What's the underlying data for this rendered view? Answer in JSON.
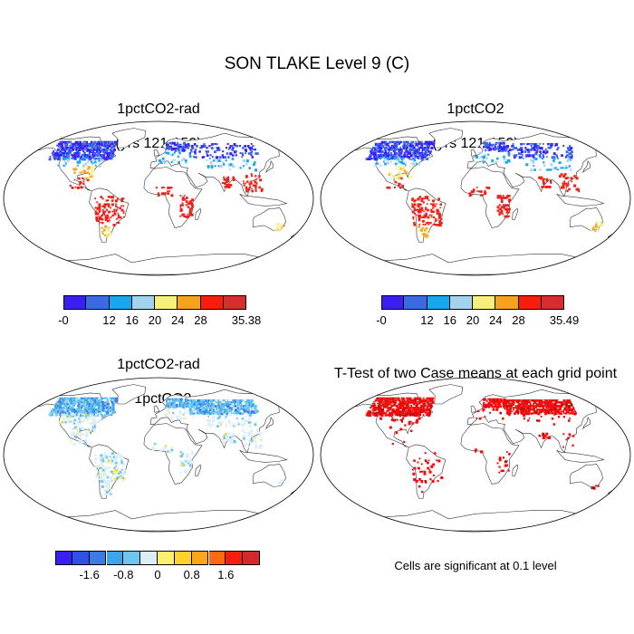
{
  "title": "SON TLAKE Level 9 (C)",
  "panels": [
    {
      "id": "p1",
      "title_lines": [
        "1pctCO2-rad",
        "(yrs 121-150)"
      ],
      "kind": "abs"
    },
    {
      "id": "p2",
      "title_lines": [
        "1pctCO2",
        "(yrs 121-150)"
      ],
      "kind": "abs"
    },
    {
      "id": "p3",
      "title_lines": [
        "1pctCO2-rad",
        "- 1pctCO2"
      ],
      "kind": "diff"
    },
    {
      "id": "p4",
      "title_lines": [
        "T-Test of two Case means at each grid point"
      ],
      "kind": "ttest"
    }
  ],
  "colorbars": {
    "abs_left": {
      "colors": [
        "#3a1ff2",
        "#3c6ae3",
        "#16a7ec",
        "#a3d3ec",
        "#f6ef7a",
        "#f7a21c",
        "#f71e0e",
        "#d62d30"
      ],
      "labels": [
        "-0",
        "12",
        "16",
        "20",
        "24",
        "28",
        "35.38"
      ]
    },
    "abs_right": {
      "colors": [
        "#3a1ff2",
        "#3c6ae3",
        "#16a7ec",
        "#a3d3ec",
        "#f6ef7a",
        "#f7a21c",
        "#f71e0e",
        "#d62d30"
      ],
      "labels": [
        "-0",
        "12",
        "16",
        "20",
        "24",
        "28",
        "35.49"
      ]
    },
    "diff": {
      "colors": [
        "#3a1ff2",
        "#3050e6",
        "#3c7ae6",
        "#3aa5ec",
        "#70c5ee",
        "#dbeef8",
        "#ffef6e",
        "#ffd42a",
        "#ffa51a",
        "#ff6a10",
        "#f51e0e",
        "#d02a2c"
      ],
      "labels": [
        "-1.6",
        "-0.8",
        "0",
        "0.8",
        "1.6"
      ]
    }
  },
  "note": "Cells are significant at 0.1 level"
}
